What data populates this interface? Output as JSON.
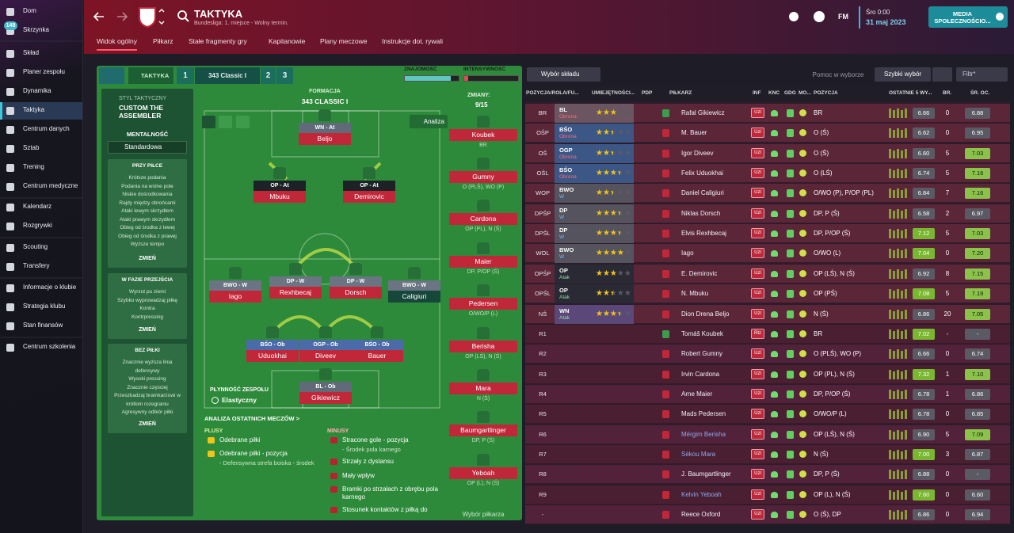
{
  "sidebar": {
    "items": [
      "Dom",
      "Skrzynka",
      "Skład",
      "Planer zespołu",
      "Dynamika",
      "Taktyka",
      "Centrum danych",
      "Sztab",
      "Trening",
      "Centrum medyczne",
      "Kalendarz",
      "Rozgrywki",
      "Scouting",
      "Transfery",
      "Informacje o klubie",
      "Strategia klubu",
      "Stan finansów",
      "Centrum szkolenia"
    ],
    "badge": "148"
  },
  "header": {
    "title": "TAKTYKA",
    "subtitle": "Bundesliga: 1. miejsce - Wolny termin.",
    "brand": "FM",
    "day": "Śro 0:00",
    "date": "31 maj 2023",
    "media": "MEDIA SPOŁECZNOŚCIO..."
  },
  "tabs": [
    "Widok ogólny",
    "Piłkarz",
    "Stałe fragmenty gry",
    "Kapitanowie",
    "Plany meczowe",
    "Instrukcje dot. rywali"
  ],
  "tactic_bar": {
    "label": "TAKTYKA",
    "slots": [
      "1",
      "343 Classic I",
      "2",
      "3"
    ],
    "familiarity": {
      "label": "ZNAJOMOŚĆ",
      "value": 85
    },
    "intensity": {
      "label": "INTENSYWNOŚĆ",
      "value": 8
    }
  },
  "style_panel": {
    "heading": "STYL TAKTYCZNY",
    "name": "CUSTOM THE ASSEMBLER",
    "mentality_label": "MENTALNOŚĆ",
    "mentality": "Standardowa",
    "sections": [
      {
        "title": "PRZY PIŁCE",
        "items": [
          "Krótsze podania",
          "Podania na wolne pole",
          "Niskie dośrodkowania",
          "Rajdy między obrońcami",
          "Ataki lewym skrzydłem",
          "Ataki prawym skrzydłem",
          "Obieg od środka z lewej",
          "Obieg od środka z prawej",
          "Wyższe tempo"
        ],
        "button": "ZMIEŃ"
      },
      {
        "title": "W FAZIE PRZEJŚCIA",
        "items": [
          "Wyrzut po ziemi",
          "Szybko wyprowadzaj piłkę",
          "Kontra",
          "Kontrpressing"
        ],
        "button": "ZMIEŃ"
      },
      {
        "title": "BEZ PIŁKI",
        "items": [
          "Znacznie wyższa linia defensywy",
          "Wysoki pressing",
          "Znacznie częściej",
          "Przeszkadzaj bramkarzowi w krótkim rozegraniu",
          "Agresywny odbiór piłki"
        ],
        "button": "ZMIEŃ"
      }
    ]
  },
  "pitch": {
    "formation_label": "FORMACJA",
    "formation": "343 CLASSIC I",
    "analysis": "Analiza",
    "players": [
      {
        "role": "WN - At",
        "name": "Beljo"
      },
      {
        "role": "OP - At",
        "name": "Mbuku"
      },
      {
        "role": "OP - At",
        "name": "Demirovic"
      },
      {
        "role": "BWO - W",
        "name": "Iago"
      },
      {
        "role": "DP - W",
        "name": "Rexhbecaj"
      },
      {
        "role": "DP - W",
        "name": "Dorsch"
      },
      {
        "role": "BWO - W",
        "name": "Caligiuri"
      },
      {
        "role": "BŚO - Ob",
        "name": "Uduokhai"
      },
      {
        "role": "OGP - Ob",
        "name": "Diveev"
      },
      {
        "role": "BŚO - Ob",
        "name": "Bauer"
      },
      {
        "role": "BL - Ob",
        "name": "Gikiewicz"
      }
    ],
    "fluidity_label": "PŁYNNOŚĆ ZESPOŁU",
    "fluidity": "Elastyczny"
  },
  "subs": {
    "label": "ZMIANY:",
    "count": "9/15",
    "players": [
      {
        "name": "Koubek",
        "positions": "BR"
      },
      {
        "name": "Gumny",
        "positions": "O (PLŚ), WO (P)"
      },
      {
        "name": "Cardona",
        "positions": "OP (PL), N (Ś)"
      },
      {
        "name": "Maier",
        "positions": "DP, P/OP (Ś)"
      },
      {
        "name": "Pedersen",
        "positions": "O/WO/P (L)"
      },
      {
        "name": "Berisha",
        "positions": "OP (LŚ), N (Ś)"
      },
      {
        "name": "Mara",
        "positions": "N (Ś)"
      },
      {
        "name": "Baumgartlinger",
        "positions": "DP, P (Ś)"
      },
      {
        "name": "Yeboah",
        "positions": "OP (L), N (Ś)"
      }
    ],
    "picker": "Wybór piłkarza"
  },
  "analysis": {
    "title": "ANALIZA OSTATNICH MECZÓW >",
    "plus_label": "PLUSY",
    "plus": [
      {
        "text": "Odebrane piłki"
      },
      {
        "text": "Odebrane piłki - pozycja",
        "detail": "- Defensywna strefa boiska - środek"
      }
    ],
    "minus_label": "MINUSY",
    "minus": [
      {
        "text": "Stracone gole - pozycja",
        "detail": "- Środek pola karnego"
      },
      {
        "text": "Strzały z dystansu"
      },
      {
        "text": "Mały wpływ"
      },
      {
        "text": "Bramki po strzałach z obrębu pola karnego"
      },
      {
        "text": "Stosunek kontaktów z piłką do"
      }
    ]
  },
  "table": {
    "toolbar": {
      "selection": "Wybór składu",
      "help": "Pomoc w wyborze",
      "quick": "Szybki wybór",
      "filter": "Filtr*"
    },
    "columns": [
      "POZYCJA/ROLA/FU...",
      "UMIEJĘTNOŚCI...",
      "PDP",
      "PIŁKARZ",
      "INF",
      "KNC",
      "GDG",
      "MO...",
      "POZYCJA",
      "OSTATNIE 5 WY...",
      "BR.",
      "ŚR. OC."
    ],
    "rows": [
      {
        "slot": "BR",
        "role": "BL",
        "duty": "Obrona",
        "stars": 3,
        "player": "Rafal Gikiewicz",
        "inf": "Uzl",
        "position": "BR",
        "last5": "6.66",
        "goals": "0",
        "avg": "6.88"
      },
      {
        "slot": "OŚP",
        "role": "BŚO",
        "duty": "Obrona",
        "stars": 2.5,
        "player": "M. Bauer",
        "inf": "Uzl",
        "position": "O (Ś)",
        "last5": "6.62",
        "goals": "0",
        "avg": "6.95"
      },
      {
        "slot": "OŚ",
        "role": "OGP",
        "duty": "Obrona",
        "stars": 2.5,
        "player": "Igor Diveev",
        "inf": "Uzl",
        "position": "O (Ś)",
        "last5": "6.60",
        "goals": "5",
        "avg": "7.03"
      },
      {
        "slot": "OŚL",
        "role": "BŚO",
        "duty": "Obrona",
        "stars": 3.5,
        "player": "Felix Uduokhai",
        "inf": "Uzl",
        "position": "O (LŚ)",
        "last5": "6.74",
        "goals": "5",
        "avg": "7.16"
      },
      {
        "slot": "WOP",
        "role": "BWO",
        "duty": "W",
        "stars": 2.5,
        "player": "Daniel Caligiuri",
        "inf": "Uzl",
        "position": "O/WO (P), P/OP (PL)",
        "last5": "6.84",
        "goals": "7",
        "avg": "7.16"
      },
      {
        "slot": "DPŚP",
        "role": "DP",
        "duty": "W",
        "stars": 3.5,
        "player": "Niklas Dorsch",
        "inf": "Uzl",
        "position": "DP, P (Ś)",
        "last5": "6.58",
        "goals": "2",
        "avg": "6.97"
      },
      {
        "slot": "DPŚL",
        "role": "DP",
        "duty": "W",
        "stars": 3.5,
        "player": "Elvis Rexhbecaj",
        "inf": "Uzl",
        "position": "DP, P/OP (Ś)",
        "last5": "7.12",
        "goals": "5",
        "avg": "7.03"
      },
      {
        "slot": "WOL",
        "role": "BWO",
        "duty": "W",
        "stars": 4,
        "player": "Iago",
        "inf": "Uzl",
        "position": "O/WO (L)",
        "last5": "7.04",
        "goals": "0",
        "avg": "7.20"
      },
      {
        "slot": "OPŚP",
        "role": "OP",
        "duty": "Atak",
        "stars": 3,
        "player": "E. Demirovic",
        "inf": "Uzl",
        "position": "OP (LŚ), N (Ś)",
        "last5": "6.92",
        "goals": "8",
        "avg": "7.15"
      },
      {
        "slot": "OPŚL",
        "role": "OP",
        "duty": "Atak",
        "stars": 2.5,
        "player": "N. Mbuku",
        "inf": "Uzl",
        "position": "OP (PŚ)",
        "last5": "7.08",
        "goals": "5",
        "avg": "7.19"
      },
      {
        "slot": "NŚ",
        "role": "WN",
        "duty": "Atak",
        "stars": 3.5,
        "player": "Dion Drena Beljo",
        "inf": "Uzl",
        "position": "N (Ś)",
        "last5": "6.86",
        "goals": "20",
        "avg": "7.05"
      },
      {
        "slot": "R1",
        "player": "Tomáš Koubek",
        "inf": "Rtz",
        "position": "BR",
        "last5": "7.02",
        "goals": "-",
        "avg": "-"
      },
      {
        "slot": "R2",
        "player": "Robert Gumny",
        "inf": "Uzl",
        "position": "O (PLŚ), WO (P)",
        "last5": "6.66",
        "goals": "0",
        "avg": "6.74"
      },
      {
        "slot": "R3",
        "player": "Irvin Cardona",
        "inf": "Uzl",
        "position": "OP (PL), N (Ś)",
        "last5": "7.32",
        "goals": "1",
        "avg": "7.10"
      },
      {
        "slot": "R4",
        "player": "Arne Maier",
        "inf": "Uzl",
        "position": "DP, P/OP (Ś)",
        "last5": "6.78",
        "goals": "1",
        "avg": "6.86"
      },
      {
        "slot": "R5",
        "player": "Mads Pedersen",
        "inf": "Uzl",
        "position": "O/WO/P (L)",
        "last5": "6.78",
        "goals": "0",
        "avg": "6.85"
      },
      {
        "slot": "R6",
        "player": "Mërgim Berisha",
        "name_color": "#8ea8ee",
        "inf": "Uzl",
        "position": "OP (LŚ), N (Ś)",
        "last5": "6.90",
        "goals": "5",
        "avg": "7.09"
      },
      {
        "slot": "R7",
        "player": "Sékou Mara",
        "name_color": "#8ea8ee",
        "inf": "Uzl",
        "position": "N (Ś)",
        "last5": "7.00",
        "goals": "3",
        "avg": "6.87"
      },
      {
        "slot": "R8",
        "player": "J. Baumgartlinger",
        "inf": "Uzl",
        "position": "DP, P (Ś)",
        "last5": "6.88",
        "goals": "0",
        "avg": "-"
      },
      {
        "slot": "R9",
        "player": "Kelvin Yeboah",
        "name_color": "#8ea8ee",
        "inf": "Uzl",
        "position": "OP (L), N (Ś)",
        "last5": "7.60",
        "goals": "0",
        "avg": "6.60"
      },
      {
        "slot": "-",
        "player": "Reece Oxford",
        "inf": "Uzl",
        "position": "O (Ś), DP",
        "last5": "6.86",
        "goals": "0",
        "avg": "6.94"
      }
    ]
  }
}
